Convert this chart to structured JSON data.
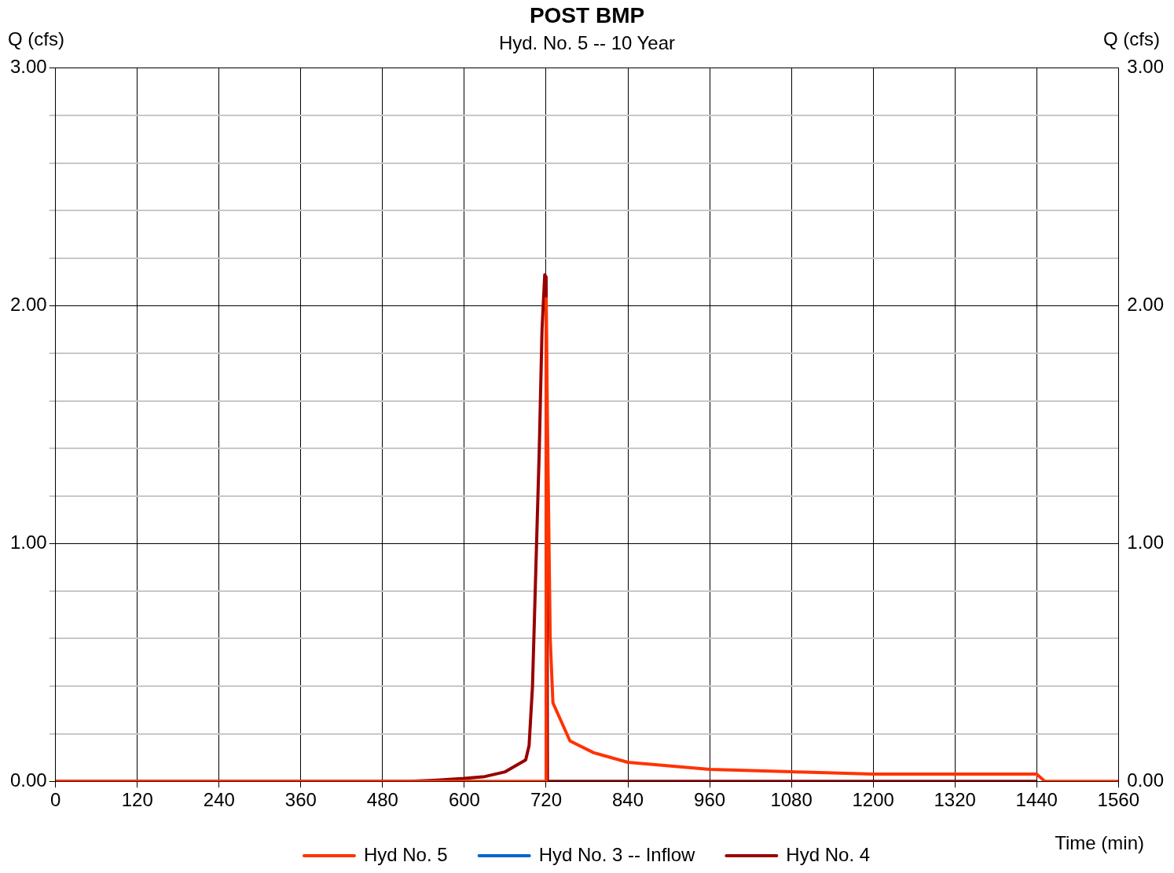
{
  "chart_data": {
    "type": "line",
    "title": "POST BMP",
    "subtitle": "Hyd. No. 5 -- 10 Year",
    "xlabel": "Time (min)",
    "ylabel": "Q (cfs)",
    "y2label": "Q (cfs)",
    "xlim": [
      0,
      1560
    ],
    "xticks": [
      0,
      120,
      240,
      360,
      480,
      600,
      720,
      840,
      960,
      1080,
      1200,
      1320,
      1440,
      1560
    ],
    "ylim": [
      0,
      3
    ],
    "yticks": [
      {
        "value": 0,
        "label": "0.00"
      },
      {
        "value": 0.2,
        "label": null
      },
      {
        "value": 0.4,
        "label": null
      },
      {
        "value": 0.6,
        "label": null
      },
      {
        "value": 0.8,
        "label": null
      },
      {
        "value": 1,
        "label": "1.00"
      },
      {
        "value": 1.2,
        "label": null
      },
      {
        "value": 1.4,
        "label": null
      },
      {
        "value": 1.6,
        "label": null
      },
      {
        "value": 1.8,
        "label": null
      },
      {
        "value": 2,
        "label": "2.00"
      },
      {
        "value": 2.2,
        "label": null
      },
      {
        "value": 2.4,
        "label": null
      },
      {
        "value": 2.6,
        "label": null
      },
      {
        "value": 2.8,
        "label": null
      },
      {
        "value": 3,
        "label": "3.00"
      }
    ],
    "y2lim": [
      0,
      3
    ],
    "y2ticks": [
      {
        "value": 0,
        "label": "0.00"
      },
      {
        "value": 1,
        "label": "1.00"
      },
      {
        "value": 2,
        "label": "2.00"
      },
      {
        "value": 3,
        "label": "3.00"
      }
    ],
    "grid": true,
    "legend": "bottom",
    "marker": "none",
    "line_style": "solid",
    "series": [
      {
        "name": "Hyd No. 5",
        "color": "#ff3300",
        "x": [
          0,
          720,
          720,
          722,
          726,
          730,
          755,
          790,
          840,
          960,
          1080,
          1200,
          1440,
          1452,
          1560
        ],
        "values": [
          0,
          0,
          2.03,
          1.5,
          0.6,
          0.33,
          0.17,
          0.12,
          0.08,
          0.05,
          0.04,
          0.03,
          0.03,
          0,
          0
        ]
      },
      {
        "name": "Hyd No. 3 -- Inflow",
        "color": "#0066cc"
      },
      {
        "name": "Hyd No. 4",
        "color": "#990000",
        "x": [
          0,
          520,
          560,
          600,
          630,
          660,
          690,
          695,
          700,
          705,
          710,
          714,
          718,
          720,
          722,
          1440
        ],
        "values": [
          0,
          0,
          0.005,
          0.012,
          0.02,
          0.04,
          0.09,
          0.15,
          0.4,
          0.9,
          1.4,
          1.9,
          2.13,
          2.12,
          0,
          0
        ]
      }
    ]
  }
}
